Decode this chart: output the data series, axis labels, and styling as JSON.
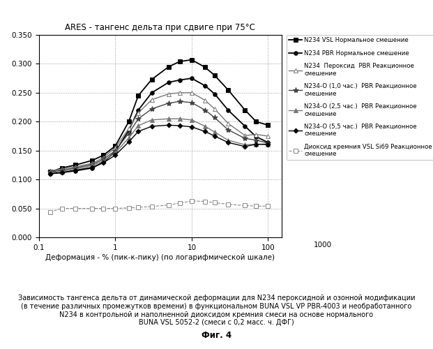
{
  "title": "ARES - тангенс дельта при сдвиге при 75°C",
  "xlabel": "Деформация - % (пик-к-пику) (по логарифмической шкале)",
  "xlim": [
    0.1,
    150
  ],
  "ylim": [
    0.0,
    0.35
  ],
  "yticks": [
    0.0,
    0.05,
    0.1,
    0.15,
    0.2,
    0.25,
    0.3,
    0.35
  ],
  "caption_lines": [
    "Зависимость тангенса дельта от динамической деформации для N234 пероксидной и озонной модификации",
    "(в течение различных промежутков времени) в функциональном BUNA VSL VP PBR-4003 и необработанного",
    "N234 в контрольной и наполненной диоксидом кремния смеси на основе нормального",
    "BUNA VSL 5052-2 (смеси с 0,2 масс. ч. ДФГ)"
  ],
  "fig_label": "Фиг. 4",
  "x_data": [
    0.14,
    0.2,
    0.3,
    0.5,
    0.7,
    1.0,
    1.5,
    2.0,
    3.0,
    5.0,
    7.0,
    10.0,
    15.0,
    20.0,
    30.0,
    50.0,
    70.0,
    100.0
  ],
  "series": [
    {
      "label_main": "N234 VSL",
      "label_sub": " Нормальное смешение",
      "color": "#000000",
      "marker": "s",
      "markersize": 4,
      "linestyle": "-",
      "linewidth": 1.3,
      "filled": true,
      "y": [
        0.113,
        0.12,
        0.125,
        0.133,
        0.142,
        0.158,
        0.2,
        0.245,
        0.273,
        0.295,
        0.304,
        0.307,
        0.294,
        0.28,
        0.255,
        0.22,
        0.2,
        0.194
      ]
    },
    {
      "label_main": "N234 PBR",
      "label_sub": " Нормальное смешение",
      "color": "#000000",
      "marker": "o",
      "markersize": 4,
      "linestyle": "-",
      "linewidth": 1.3,
      "filled": true,
      "y": [
        0.11,
        0.112,
        0.115,
        0.12,
        0.13,
        0.148,
        0.185,
        0.22,
        0.25,
        0.268,
        0.272,
        0.275,
        0.262,
        0.248,
        0.22,
        0.192,
        0.174,
        0.164
      ]
    },
    {
      "label_main": "N234  Пероксид  PBR",
      "label_sub": " Реакционное\nсмешение",
      "color": "#777777",
      "marker": "^",
      "markersize": 4,
      "linestyle": "-",
      "linewidth": 1.0,
      "filled": false,
      "y": [
        0.115,
        0.118,
        0.122,
        0.128,
        0.138,
        0.155,
        0.188,
        0.215,
        0.238,
        0.248,
        0.25,
        0.25,
        0.237,
        0.222,
        0.197,
        0.176,
        0.178,
        0.175
      ]
    },
    {
      "label_main": "N234-O (1,0 час.)  PBR",
      "label_sub": " Реакционное\nсмешение",
      "color": "#444444",
      "marker": "*",
      "markersize": 6,
      "linestyle": "-",
      "linewidth": 1.0,
      "filled": true,
      "y": [
        0.113,
        0.116,
        0.12,
        0.126,
        0.135,
        0.15,
        0.18,
        0.205,
        0.222,
        0.232,
        0.235,
        0.233,
        0.22,
        0.207,
        0.186,
        0.171,
        0.168,
        0.163
      ]
    },
    {
      "label_main": "N234-O (2,5 час.)  PBR",
      "label_sub": " Реакционное\nсмешение",
      "color": "#777777",
      "marker": "^",
      "markersize": 4,
      "linestyle": "-",
      "linewidth": 1.0,
      "filled": true,
      "y": [
        0.112,
        0.114,
        0.118,
        0.124,
        0.132,
        0.146,
        0.172,
        0.193,
        0.203,
        0.205,
        0.205,
        0.203,
        0.192,
        0.182,
        0.168,
        0.16,
        0.161,
        0.16
      ]
    },
    {
      "label_main": "N234-O (5,5 час.)  PBR",
      "label_sub": " Реакционное\nсмешение",
      "color": "#000000",
      "marker": "D",
      "markersize": 3.5,
      "linestyle": "-",
      "linewidth": 1.0,
      "filled": true,
      "y": [
        0.11,
        0.112,
        0.116,
        0.121,
        0.129,
        0.142,
        0.165,
        0.183,
        0.192,
        0.194,
        0.193,
        0.191,
        0.183,
        0.175,
        0.164,
        0.157,
        0.161,
        0.161
      ]
    },
    {
      "label_main": "Диоксид кремния VSL Si69",
      "label_sub": " Реакционное\nсмешение",
      "color": "#888888",
      "marker": "s",
      "markersize": 4,
      "linestyle": "--",
      "linewidth": 0.8,
      "filled": false,
      "y": [
        0.044,
        0.05,
        0.05,
        0.05,
        0.05,
        0.05,
        0.051,
        0.052,
        0.053,
        0.056,
        0.059,
        0.063,
        0.062,
        0.06,
        0.057,
        0.055,
        0.054,
        0.054
      ]
    }
  ]
}
